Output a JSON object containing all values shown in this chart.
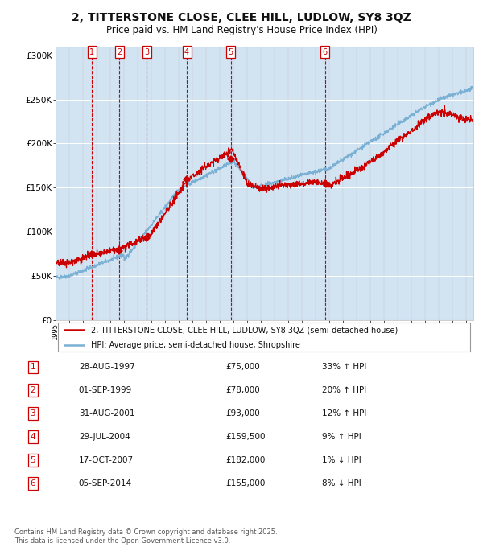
{
  "title_line1": "2, TITTERSTONE CLOSE, CLEE HILL, LUDLOW, SY8 3QZ",
  "title_line2": "Price paid vs. HM Land Registry's House Price Index (HPI)",
  "legend_label_red": "2, TITTERSTONE CLOSE, CLEE HILL, LUDLOW, SY8 3QZ (semi-detached house)",
  "legend_label_blue": "HPI: Average price, semi-detached house, Shropshire",
  "transactions": [
    {
      "num": 1,
      "date": "28-AUG-1997",
      "year": 1997.66,
      "price": 75000,
      "hpi_pct": "33% ↑ HPI"
    },
    {
      "num": 2,
      "date": "01-SEP-1999",
      "year": 1999.67,
      "price": 78000,
      "hpi_pct": "20% ↑ HPI"
    },
    {
      "num": 3,
      "date": "31-AUG-2001",
      "year": 2001.66,
      "price": 93000,
      "hpi_pct": "12% ↑ HPI"
    },
    {
      "num": 4,
      "date": "29-JUL-2004",
      "year": 2004.58,
      "price": 159500,
      "hpi_pct": "9% ↑ HPI"
    },
    {
      "num": 5,
      "date": "17-OCT-2007",
      "year": 2007.8,
      "price": 182000,
      "hpi_pct": "1% ↓ HPI"
    },
    {
      "num": 6,
      "date": "05-SEP-2014",
      "year": 2014.68,
      "price": 155000,
      "hpi_pct": "8% ↓ HPI"
    }
  ],
  "xmin": 1995,
  "xmax": 2025.5,
  "ymin": 0,
  "ymax": 310000,
  "yticks": [
    0,
    50000,
    100000,
    150000,
    200000,
    250000,
    300000
  ],
  "ylabel_fmt": [
    "£0",
    "£50K",
    "£100K",
    "£150K",
    "£200K",
    "£250K",
    "£300K"
  ],
  "bg_color": "#dce9f5",
  "grid_color": "#ffffff",
  "red_color": "#cc0000",
  "blue_color": "#7ab0d4",
  "vline_color_dashed": "#cc0000",
  "footer_text": "Contains HM Land Registry data © Crown copyright and database right 2025.\nThis data is licensed under the Open Government Licence v3.0."
}
